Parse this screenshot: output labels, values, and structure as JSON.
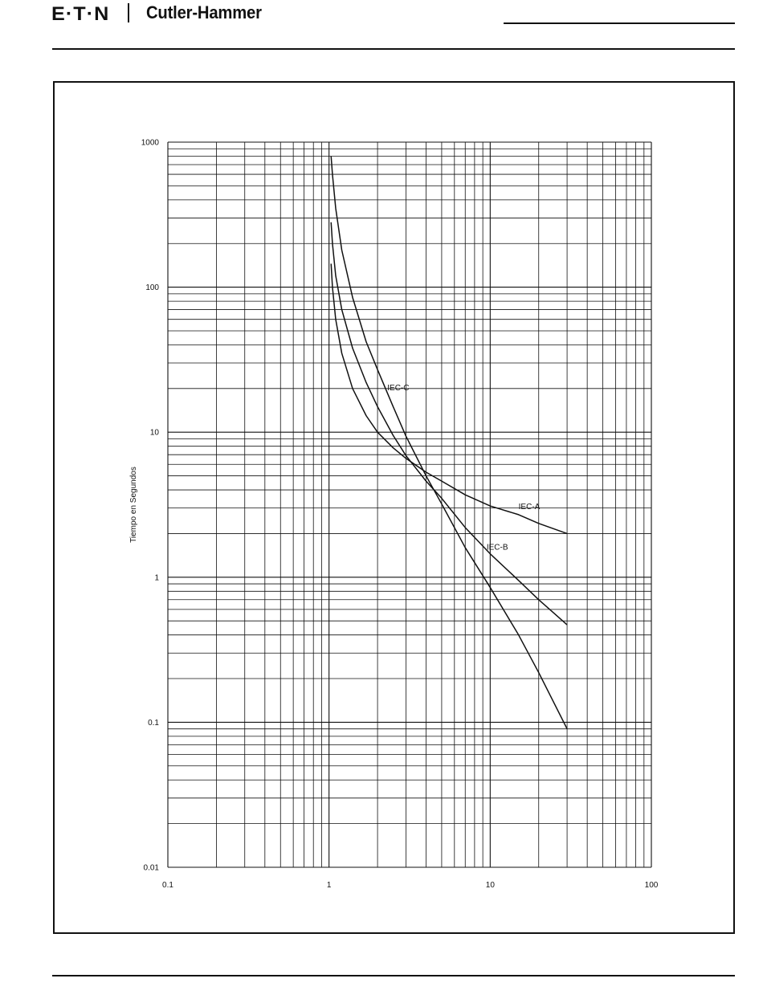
{
  "header": {
    "brand": "E·T·N",
    "product_line": "Cutler-Hammer"
  },
  "chart_data": {
    "type": "line",
    "title": "",
    "xlabel": "",
    "ylabel": "Tiempo en Segundos",
    "x_scale": "log",
    "y_scale": "log",
    "xlim": [
      0.1,
      100
    ],
    "ylim": [
      0.01,
      1000
    ],
    "grid": true,
    "x_tick_labels": [
      "0.1",
      "1",
      "10",
      "100"
    ],
    "y_tick_labels": [
      "1000",
      "100",
      "10",
      "1",
      "0.1",
      "0.01"
    ],
    "series": [
      {
        "name": "IEC-A",
        "points": [
          [
            1.03,
            145
          ],
          [
            1.05,
            100
          ],
          [
            1.1,
            60
          ],
          [
            1.2,
            35
          ],
          [
            1.4,
            20
          ],
          [
            1.7,
            13
          ],
          [
            2,
            10
          ],
          [
            2.5,
            7.8
          ],
          [
            3,
            6.6
          ],
          [
            4,
            5.3
          ],
          [
            5,
            4.6
          ],
          [
            7,
            3.7
          ],
          [
            10,
            3.1
          ],
          [
            15,
            2.7
          ],
          [
            20,
            2.35
          ],
          [
            30,
            2.0
          ]
        ]
      },
      {
        "name": "IEC-B",
        "points": [
          [
            1.03,
            280
          ],
          [
            1.05,
            200
          ],
          [
            1.1,
            120
          ],
          [
            1.2,
            70
          ],
          [
            1.4,
            38
          ],
          [
            1.7,
            22
          ],
          [
            2,
            15
          ],
          [
            2.5,
            9.5
          ],
          [
            3,
            6.9
          ],
          [
            4,
            4.6
          ],
          [
            5,
            3.5
          ],
          [
            7,
            2.2
          ],
          [
            10,
            1.45
          ],
          [
            15,
            0.95
          ],
          [
            20,
            0.7
          ],
          [
            30,
            0.47
          ]
        ]
      },
      {
        "name": "IEC-C",
        "points": [
          [
            1.03,
            800
          ],
          [
            1.05,
            600
          ],
          [
            1.1,
            350
          ],
          [
            1.2,
            180
          ],
          [
            1.4,
            85
          ],
          [
            1.7,
            42
          ],
          [
            2,
            27
          ],
          [
            2.5,
            15
          ],
          [
            3,
            9.4
          ],
          [
            4,
            5
          ],
          [
            5,
            3.2
          ],
          [
            7,
            1.6
          ],
          [
            10,
            0.85
          ],
          [
            15,
            0.4
          ],
          [
            20,
            0.22
          ],
          [
            30,
            0.09
          ]
        ]
      }
    ],
    "annotations": [
      {
        "text": "IEC-A",
        "x": 15,
        "y": 2.95
      },
      {
        "text": "IEC-B",
        "x": 9.5,
        "y": 1.55
      },
      {
        "text": "IEC-C",
        "x": 2.3,
        "y": 19.5
      }
    ]
  }
}
